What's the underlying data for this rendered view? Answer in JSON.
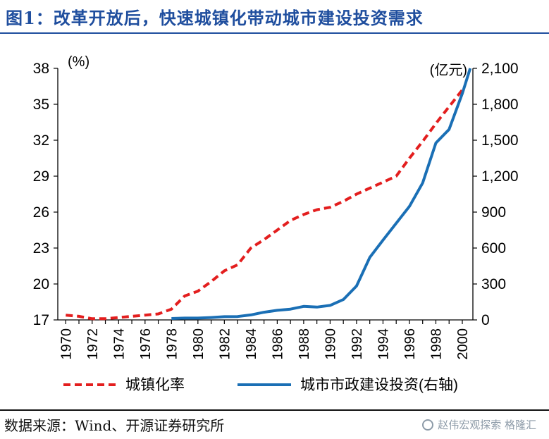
{
  "title": "图1：改革开放后，快速城镇化带动城市建设投资需求",
  "source": "数据来源：Wind、开源证券研究所",
  "watermark": "赵伟宏观探索 格隆汇",
  "colors": {
    "title": "#1f4e9e",
    "urbanization": "#e31e1e",
    "investment": "#1a6fb5"
  },
  "chart_data": {
    "type": "line",
    "left_axis": {
      "label": "(%)",
      "ticks": [
        17,
        20,
        23,
        26,
        29,
        32,
        35,
        38
      ],
      "ylim": [
        17,
        38
      ]
    },
    "right_axis": {
      "label": "(亿元)",
      "ticks": [
        "0",
        "300",
        "600",
        "900",
        "1,200",
        "1,500",
        "1,800",
        "2,100"
      ],
      "ylim": [
        0,
        2100
      ]
    },
    "x_ticks": [
      "1970",
      "1972",
      "1974",
      "1976",
      "1978",
      "1980",
      "1982",
      "1984",
      "1986",
      "1988",
      "1990",
      "1992",
      "1994",
      "1996",
      "1998",
      "2000"
    ],
    "series": [
      {
        "name": "城镇化率",
        "axis": "left",
        "style": "dashed",
        "x": [
          1970,
          1971,
          1972,
          1973,
          1974,
          1975,
          1976,
          1977,
          1978,
          1979,
          1980,
          1981,
          1982,
          1983,
          1984,
          1985,
          1986,
          1987,
          1988,
          1989,
          1990,
          1991,
          1992,
          1993,
          1994,
          1995,
          1996,
          1997,
          1998,
          1999,
          2000
        ],
        "values": [
          17.4,
          17.3,
          17.1,
          17.1,
          17.2,
          17.3,
          17.4,
          17.5,
          17.9,
          19.0,
          19.4,
          20.2,
          21.1,
          21.6,
          23.0,
          23.7,
          24.5,
          25.3,
          25.8,
          26.2,
          26.4,
          26.9,
          27.5,
          28.0,
          28.5,
          29.0,
          30.5,
          31.9,
          33.4,
          34.8,
          36.2
        ]
      },
      {
        "name": "城市市政建设投资(右轴)",
        "axis": "right",
        "style": "solid",
        "x": [
          1978,
          1979,
          1980,
          1981,
          1982,
          1983,
          1984,
          1985,
          1986,
          1987,
          1988,
          1989,
          1990,
          1991,
          1992,
          1993,
          1994,
          1995,
          1996,
          1997,
          1998,
          1999,
          2000,
          2000.6
        ],
        "values": [
          12,
          15,
          15,
          20,
          27,
          28,
          42,
          64,
          80,
          90,
          113,
          107,
          121,
          170,
          283,
          522,
          666,
          807,
          948,
          1143,
          1477,
          1590,
          1890,
          2100
        ]
      }
    ]
  }
}
